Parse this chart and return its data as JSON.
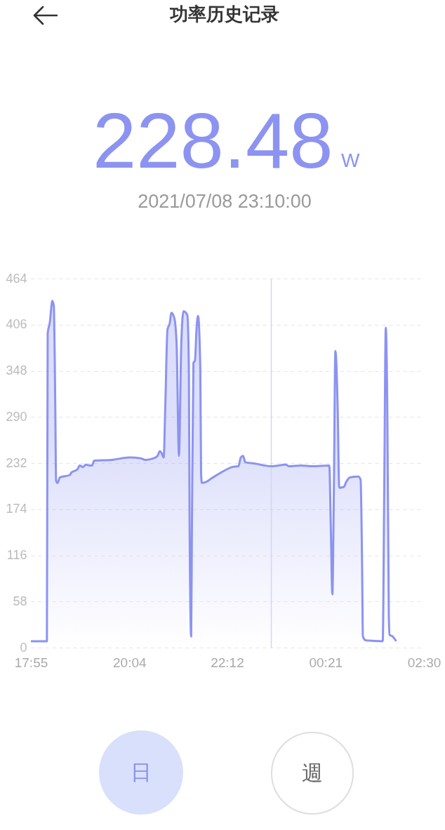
{
  "chart_data": {
    "type": "area",
    "title": "功率历史记录",
    "annotations": [
      "228.48",
      "W",
      "2021/07/08 23:10:00",
      "日",
      "週"
    ],
    "color": "#8c93f0",
    "x": [
      "2021-07-08T17:55",
      "2021-07-08T18:16",
      "2021-07-08T18:17",
      "2021-07-08T18:20",
      "2021-07-08T18:22",
      "2021-07-08T18:23",
      "2021-07-08T18:25",
      "2021-07-08T18:27",
      "2021-07-08T18:28",
      "2021-07-08T18:30",
      "2021-07-08T18:33",
      "2021-07-08T18:46",
      "2021-07-08T18:48",
      "2021-07-08T18:56",
      "2021-07-08T18:59",
      "2021-07-08T19:03",
      "2021-07-08T19:07",
      "2021-07-08T19:12",
      "2021-07-08T19:15",
      "2021-07-08T19:18",
      "2021-07-08T19:41",
      "2021-07-08T20:04",
      "2021-07-08T20:19",
      "2021-07-08T20:25",
      "2021-07-08T20:36",
      "2021-07-08T20:41",
      "2021-07-08T20:44",
      "2021-07-08T20:46",
      "2021-07-08T20:49",
      "2021-07-08T20:51",
      "2021-07-08T20:54",
      "2021-07-08T20:57",
      "2021-07-08T20:59",
      "2021-07-08T21:03",
      "2021-07-08T21:06",
      "2021-07-08T21:09",
      "2021-07-08T21:12",
      "2021-07-08T21:15",
      "2021-07-08T21:20",
      "2021-07-08T21:22",
      "2021-07-08T21:23",
      "2021-07-08T21:25",
      "2021-07-08T21:26",
      "2021-07-08T21:28",
      "2021-07-08T21:30",
      "2021-07-08T21:32",
      "2021-07-08T21:34",
      "2021-07-08T21:37",
      "2021-07-08T21:38",
      "2021-07-08T21:39",
      "2021-07-08T21:44",
      "2021-07-08T21:52",
      "2021-07-08T22:04",
      "2021-07-08T22:19",
      "2021-07-08T22:27",
      "2021-07-08T22:30",
      "2021-07-08T22:33",
      "2021-07-08T22:36",
      "2021-07-08T22:51",
      "2021-07-08T23:01",
      "2021-07-08T23:10",
      "2021-07-08T23:29",
      "2021-07-08T23:33",
      "2021-07-08T23:49",
      "2021-07-09T00:04",
      "2021-07-09T00:26",
      "2021-07-09T00:28",
      "2021-07-09T00:30",
      "2021-07-09T00:32",
      "2021-07-09T00:34",
      "2021-07-09T00:37",
      "2021-07-09T00:39",
      "2021-07-09T00:45",
      "2021-07-09T00:48",
      "2021-07-09T00:53",
      "2021-07-09T01:04",
      "2021-07-09T01:07",
      "2021-07-09T01:09",
      "2021-07-09T01:10",
      "2021-07-09T01:14",
      "2021-07-09T01:36",
      "2021-07-09T01:38",
      "2021-07-09T01:40",
      "2021-07-09T01:42",
      "2021-07-09T01:44",
      "2021-07-09T01:45",
      "2021-07-09T01:49",
      "2021-07-09T01:53"
    ],
    "values": [
      8,
      8,
      395,
      410,
      430,
      436,
      430,
      300,
      210,
      207,
      214,
      217,
      220,
      224,
      229,
      227,
      230,
      229,
      229,
      235,
      236,
      239,
      238,
      236,
      238,
      241,
      247,
      245,
      239,
      300,
      400,
      408,
      421,
      414,
      380,
      241,
      380,
      423,
      418,
      350,
      150,
      14,
      150,
      358,
      361,
      400,
      417,
      350,
      220,
      207,
      208,
      213,
      220,
      227,
      228,
      239,
      241,
      233,
      231,
      229,
      228,
      230,
      228,
      229,
      228,
      229,
      150,
      67,
      200,
      373,
      300,
      201,
      202,
      208,
      214,
      215,
      211,
      100,
      14,
      9,
      8,
      200,
      402,
      300,
      40,
      16,
      14,
      9
    ],
    "xlim": [
      "2021-07-08T17:55",
      "2021-07-09T02:30"
    ],
    "xticks": [
      {
        "value": "2021-07-08T17:55",
        "label": "17:55"
      },
      {
        "value": "2021-07-08T20:04",
        "label": "20:04"
      },
      {
        "value": "2021-07-08T22:12",
        "label": "22:12"
      },
      {
        "value": "2021-07-09T00:21",
        "label": "00:21"
      },
      {
        "value": "2021-07-09T02:30",
        "label": "02:30"
      }
    ],
    "ylim": [
      0,
      464
    ],
    "yticks": [
      0,
      58,
      116,
      174,
      232,
      290,
      348,
      406,
      464
    ],
    "grid": "y",
    "ref_lines": [
      {
        "axis": "x",
        "value": "2021-07-08T23:10",
        "color": "#d4d6f0"
      }
    ]
  }
}
